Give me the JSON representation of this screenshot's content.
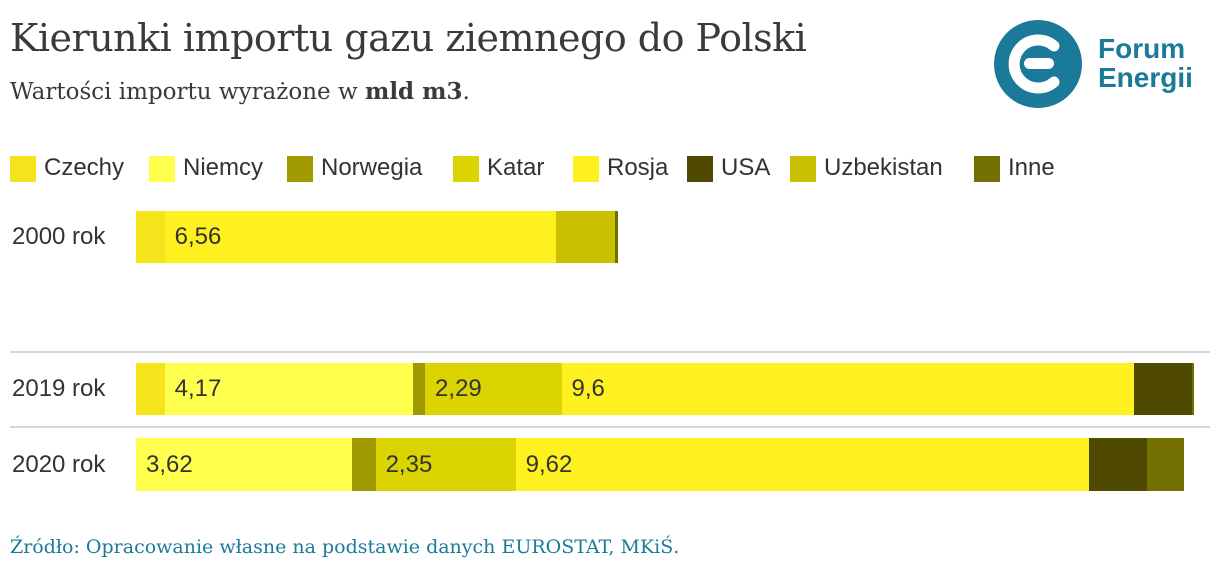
{
  "header": {
    "title": "Kierunki importu gazu ziemnego do Polski",
    "subtitle_prefix": "Wartości importu wyrażone w ",
    "subtitle_unit": "mld m3",
    "subtitle_suffix": "."
  },
  "logo": {
    "line1": "Forum",
    "line2": "Energii",
    "color": "#1b7a99"
  },
  "source": "Źródło: Opracowanie własne na podstawie danych EUROSTAT, MKiŚ.",
  "chart_data": {
    "type": "bar",
    "orientation": "horizontal",
    "stacked": true,
    "categories": [
      "2000 rok",
      "2019 rok",
      "2020 rok"
    ],
    "series": [
      {
        "name": "Czechy",
        "color": "#f5e41c",
        "values": [
          0.48,
          0.48,
          0.0
        ]
      },
      {
        "name": "Niemcy",
        "color": "#ffff4d",
        "values": [
          0.0,
          4.17,
          3.62
        ]
      },
      {
        "name": "Norwegia",
        "color": "#a09a00",
        "values": [
          0.0,
          0.2,
          0.4
        ]
      },
      {
        "name": "Katar",
        "color": "#dcd400",
        "values": [
          0.0,
          2.29,
          2.35
        ]
      },
      {
        "name": "Rosja",
        "color": "#fff020",
        "values": [
          6.56,
          9.6,
          9.62
        ]
      },
      {
        "name": "USA",
        "color": "#4f4a00",
        "values": [
          0.0,
          0.98,
          0.98
        ]
      },
      {
        "name": "Uzbekistan",
        "color": "#c8c000",
        "values": [
          1.0,
          0.0,
          0.0
        ]
      },
      {
        "name": "Inne",
        "color": "#727000",
        "values": [
          0.04,
          0.03,
          0.62
        ]
      }
    ],
    "data_labels": [
      {
        "category": "2000 rok",
        "series": "Rosja",
        "text": "6,56"
      },
      {
        "category": "2019 rok",
        "series": "Niemcy",
        "text": "4,17"
      },
      {
        "category": "2019 rok",
        "series": "Katar",
        "text": "2,29"
      },
      {
        "category": "2019 rok",
        "series": "Rosja",
        "text": "9,6"
      },
      {
        "category": "2020 rok",
        "series": "Niemcy",
        "text": "3,62"
      },
      {
        "category": "2020 rok",
        "series": "Katar",
        "text": "2,35"
      },
      {
        "category": "2020 rok",
        "series": "Rosja",
        "text": "9,62"
      }
    ],
    "legend_position": "top",
    "grid": false
  }
}
